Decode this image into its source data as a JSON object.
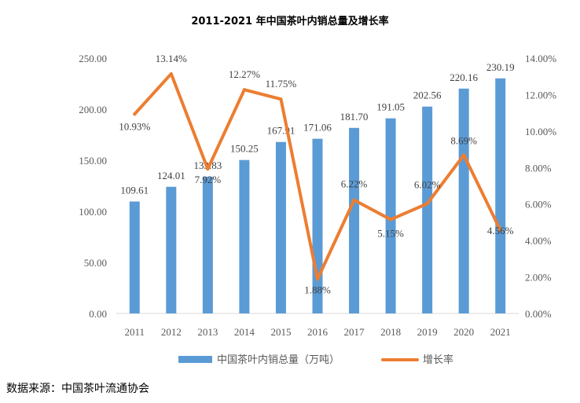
{
  "chart_data": {
    "type": "bar",
    "title": "2011-2021 年中国茶叶内销总量及增长率",
    "categories": [
      "2011",
      "2012",
      "2013",
      "2014",
      "2015",
      "2016",
      "2017",
      "2018",
      "2019",
      "2020",
      "2021"
    ],
    "series": [
      {
        "name": "中国茶叶内销总量（万吨）",
        "type": "bar",
        "axis": "left",
        "values": [
          109.61,
          124.01,
          133.83,
          150.25,
          167.91,
          171.06,
          181.7,
          191.05,
          202.56,
          220.16,
          230.19
        ],
        "labels": [
          "109.61",
          "124.01",
          "133.83",
          "150.25",
          "167.91",
          "171.06",
          "181.70",
          "191.05",
          "202.56",
          "220.16",
          "230.19"
        ],
        "color": "#5B9BD5"
      },
      {
        "name": "增长率",
        "type": "line",
        "axis": "right",
        "values": [
          10.93,
          13.14,
          7.92,
          12.27,
          11.75,
          1.88,
          6.22,
          5.15,
          6.02,
          8.69,
          4.56
        ],
        "labels": [
          "10.93%",
          "13.14%",
          "7.92%",
          "12.27%",
          "11.75%",
          "1.88%",
          "6.22%",
          "5.15%",
          "6.02%",
          "8.69%",
          "4.56%"
        ],
        "color": "#ED7D31"
      }
    ],
    "y_left": {
      "min": 0,
      "max": 250,
      "ticks": [
        "0.00",
        "50.00",
        "100.00",
        "150.00",
        "200.00",
        "250.00"
      ]
    },
    "y_right": {
      "min": 0,
      "max": 14,
      "ticks": [
        "0.00%",
        "2.00%",
        "4.00%",
        "6.00%",
        "8.00%",
        "10.00%",
        "12.00%",
        "14.00%"
      ]
    },
    "legend_position": "bottom"
  },
  "source": "数据来源：中国茶叶流通协会"
}
